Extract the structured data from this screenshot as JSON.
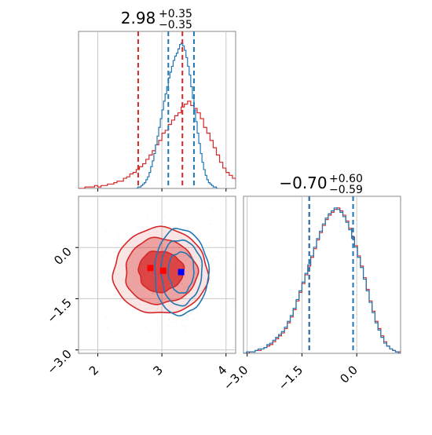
{
  "chart_data": [
    {
      "type": "histogram",
      "panel": "top-left",
      "title": {
        "main": "2.98",
        "upper": "+0.35",
        "lower": "−0.35"
      },
      "xlim": [
        1.7,
        4.15
      ],
      "grid": true,
      "series": [
        {
          "name": "",
          "color": "#d62728",
          "bin_start": 1.7,
          "bin_width": 0.05,
          "counts": [
            0,
            0,
            1,
            1,
            1,
            2,
            1,
            2,
            2,
            3,
            3,
            4,
            5,
            5,
            7,
            8,
            10,
            11,
            13,
            15,
            17,
            20,
            23,
            26,
            30,
            33,
            38,
            40,
            44,
            47,
            50,
            52,
            56,
            58,
            60,
            57,
            55,
            52,
            48,
            42,
            38,
            33,
            28,
            23,
            18,
            14,
            11,
            9,
            7,
            6,
            5,
            4,
            3,
            2,
            2,
            1,
            1,
            1,
            0
          ],
          "quantiles": [
            2.63,
            3.32
          ]
        },
        {
          "name": "",
          "color": "#1f77b4",
          "bin_start": 2.6,
          "bin_width": 0.025,
          "counts": [
            0,
            1,
            1,
            2,
            3,
            4,
            6,
            8,
            11,
            15,
            19,
            24,
            30,
            36,
            42,
            48,
            54,
            60,
            65,
            70,
            76,
            80,
            84,
            88,
            91,
            93,
            96,
            99,
            100,
            98,
            95,
            90,
            84,
            78,
            70,
            62,
            54,
            46,
            38,
            31,
            24,
            18,
            13,
            9,
            6,
            4,
            3,
            2,
            1,
            1,
            0
          ],
          "quantiles": [
            3.1,
            3.5
          ]
        }
      ]
    },
    {
      "type": "histogram",
      "panel": "bottom-right",
      "title": {
        "main": "−0.70",
        "upper": "+0.60",
        "lower": "−0.59"
      },
      "xlim": [
        -3.1,
        1.2
      ],
      "xticks": [
        "−3.0",
        "−1.5",
        "0.0"
      ],
      "xtick_values": [
        -3.0,
        -1.5,
        0.0
      ],
      "grid": true,
      "series": [
        {
          "name": "",
          "color": "#d62728",
          "bin_start": -3.1,
          "bin_width": 0.08,
          "counts": [
            0,
            0,
            1,
            1,
            2,
            2,
            3,
            4,
            5,
            6,
            8,
            10,
            12,
            14,
            17,
            21,
            25,
            30,
            36,
            42,
            48,
            54,
            60,
            66,
            72,
            78,
            83,
            88,
            92,
            95,
            97,
            99,
            100,
            98,
            95,
            91,
            86,
            80,
            74,
            67,
            60,
            52,
            44,
            36,
            29,
            22,
            17,
            12,
            8,
            5,
            3,
            2,
            1,
            1,
            0
          ],
          "quantiles": [
            -1.3,
            -0.1
          ]
        },
        {
          "name": "",
          "color": "#1f77b4",
          "bin_start": -3.1,
          "bin_width": 0.08,
          "counts": [
            0,
            1,
            1,
            1,
            2,
            3,
            3,
            4,
            6,
            7,
            9,
            11,
            13,
            15,
            18,
            22,
            26,
            31,
            37,
            43,
            49,
            55,
            61,
            67,
            73,
            79,
            84,
            89,
            93,
            96,
            98,
            100,
            99,
            97,
            94,
            90,
            85,
            79,
            73,
            66,
            59,
            51,
            43,
            35,
            28,
            21,
            16,
            11,
            7,
            5,
            3,
            2,
            1,
            0,
            0
          ],
          "quantiles": [
            -1.3,
            -0.1
          ]
        }
      ]
    },
    {
      "type": "contour",
      "panel": "bottom-left",
      "xlim": [
        1.7,
        4.15
      ],
      "ylim": [
        -3.1,
        1.5
      ],
      "xticks": [
        "2",
        "3",
        "4"
      ],
      "xtick_values": [
        2,
        3,
        4
      ],
      "yticks": [
        "0.0",
        "−1.5",
        "−3.0"
      ],
      "ytick_values": [
        0.0,
        -1.5,
        -3.0
      ],
      "grid": true,
      "series": [
        {
          "name": "",
          "color": "#d62728",
          "center": [
            2.98,
            -0.7
          ],
          "sigma": [
            0.35,
            0.6
          ],
          "filled": true,
          "marker": [
            2.82,
            -0.6
          ]
        },
        {
          "name": "",
          "color": "#1f77b4",
          "center": [
            3.3,
            -0.72
          ],
          "sigma": [
            0.2,
            0.6
          ],
          "filled": false,
          "marker": [
            3.3,
            -0.72
          ]
        }
      ],
      "extra_markers": [
        {
          "color": "#ff0000",
          "point": [
            3.02,
            -0.68
          ]
        }
      ]
    }
  ]
}
